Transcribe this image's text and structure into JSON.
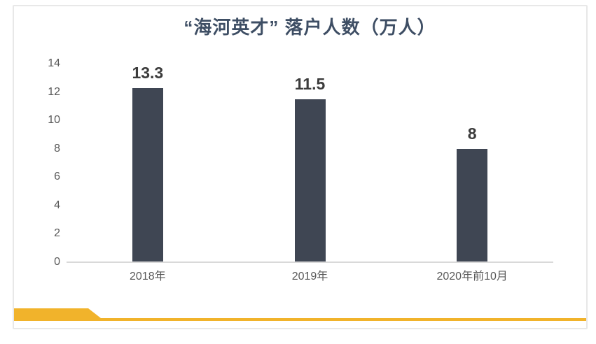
{
  "chart_data": {
    "type": "bar",
    "title": "“海河英才” 落户人数（万人）",
    "categories": [
      "2018年",
      "2019年",
      "2020年前10月"
    ],
    "values": [
      13.3,
      11.5,
      8
    ],
    "data_labels": [
      "13.3",
      "11.5",
      "8"
    ],
    "xlabel": "",
    "ylabel": "",
    "ylim": [
      0,
      14
    ],
    "yticks": [
      0,
      2,
      4,
      6,
      8,
      10,
      12,
      14
    ],
    "grid": false,
    "legend": "none",
    "colors": {
      "bar": "#3f4653",
      "title": "#3e4e64",
      "data_label": "#3c3c3c",
      "axis_text": "#595959",
      "axis_line": "#d9d9d9",
      "accent": "#f1b32b",
      "frame_border": "#e8e8e8"
    }
  }
}
